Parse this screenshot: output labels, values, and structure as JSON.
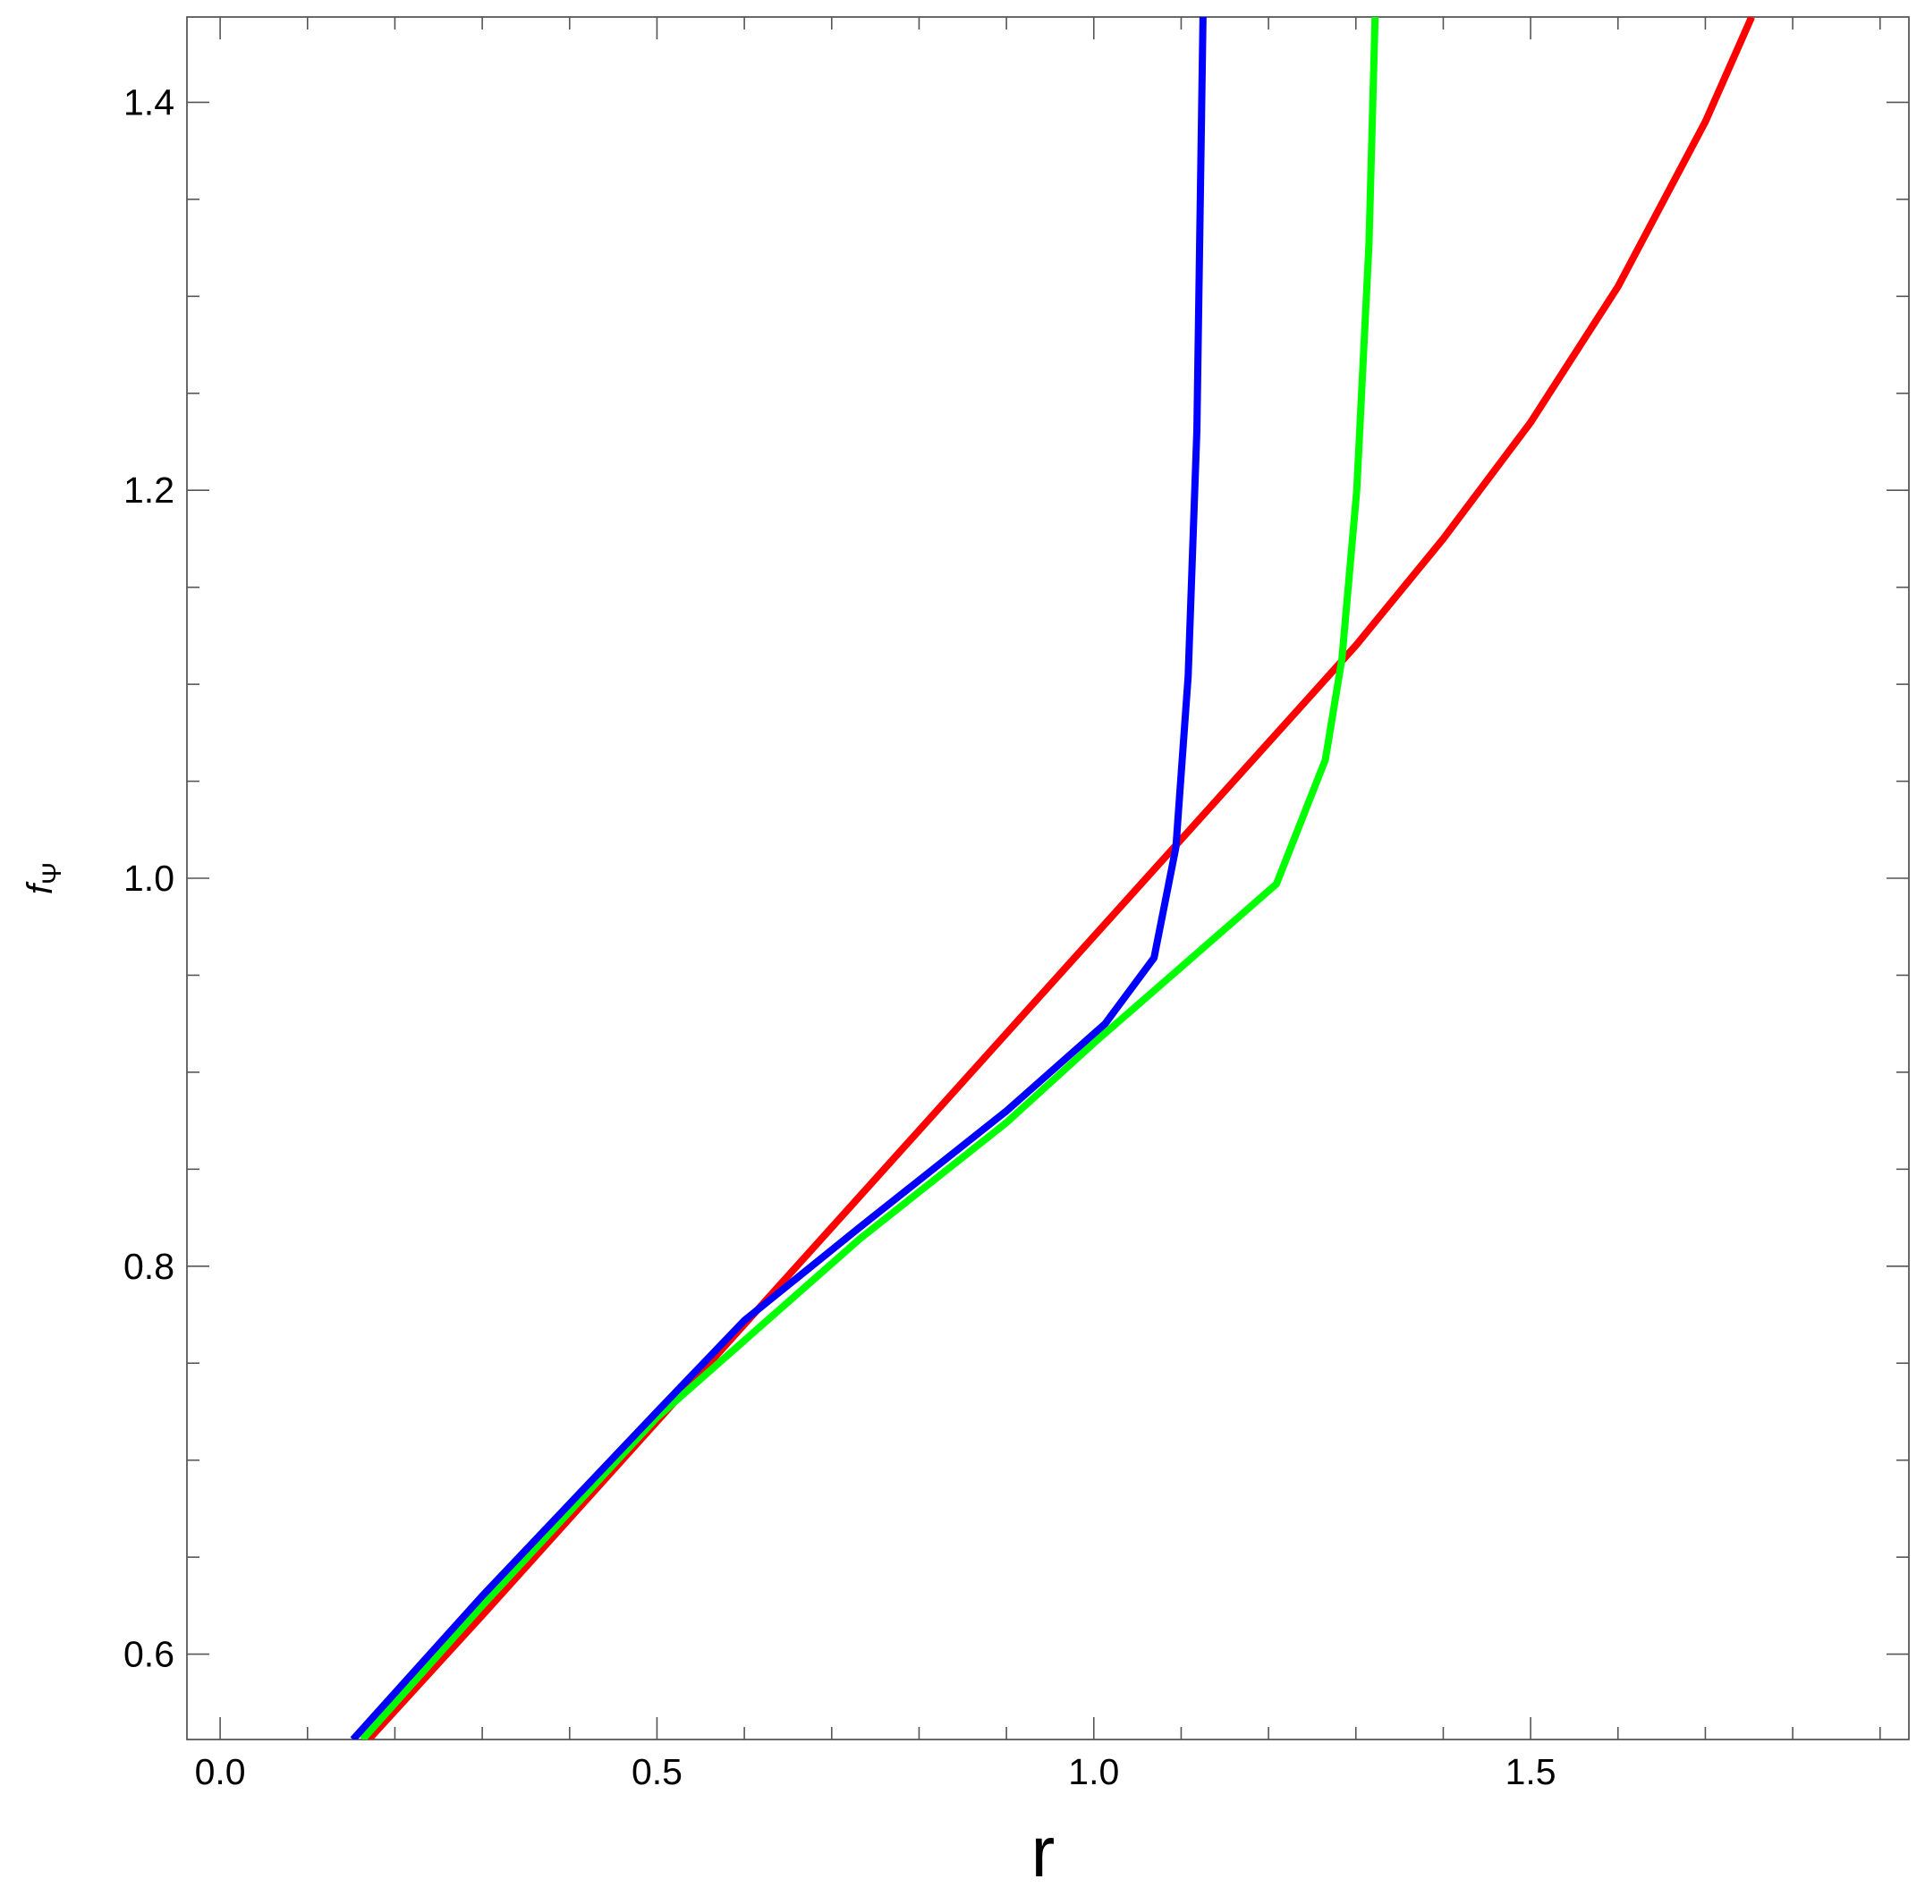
{
  "chart_data": {
    "type": "line",
    "xlabel": "r",
    "ylabel": "f",
    "ylabel_subscript": "Ψ",
    "series": [
      {
        "color": "#ff0000",
        "x": [
          0.17,
          0.3,
          0.5,
          0.7,
          0.9,
          1.1,
          1.3,
          1.4,
          1.5,
          1.6,
          1.7,
          1.753
        ],
        "values": [
          0.556,
          0.62,
          0.72,
          0.82,
          0.92,
          1.02,
          1.12,
          1.175,
          1.235,
          1.305,
          1.39,
          1.444
        ]
      },
      {
        "color": "#00ff00",
        "x": [
          0.163,
          0.3,
          0.5,
          0.732,
          0.9,
          1.0,
          1.097,
          1.209,
          1.265,
          1.284,
          1.301,
          1.315,
          1.322
        ],
        "values": [
          0.556,
          0.625,
          0.722,
          0.814,
          0.874,
          0.915,
          0.953,
          0.997,
          1.061,
          1.113,
          1.2,
          1.327,
          1.444
        ]
      },
      {
        "color": "#0000ff",
        "x": [
          0.152,
          0.3,
          0.5,
          0.6,
          0.732,
          0.9,
          1.013,
          1.069,
          1.094,
          1.108,
          1.118,
          1.125
        ],
        "values": [
          0.556,
          0.63,
          0.725,
          0.772,
          0.82,
          0.88,
          0.925,
          0.959,
          1.016,
          1.104,
          1.231,
          1.444
        ]
      }
    ],
    "xlim": [
      -0.038,
      1.933
    ],
    "ylim": [
      0.556,
      1.444
    ],
    "xticks": [
      {
        "value": 0,
        "label": "0.0"
      },
      0.5,
      {
        "value": 1,
        "label": "1.0"
      },
      1.5
    ],
    "yticks": [
      0.6,
      0.8,
      {
        "value": 1,
        "label": "1.0"
      },
      1.2,
      1.4
    ],
    "xticks_minor": [
      0.1,
      0.2,
      0.3,
      0.4,
      0.6,
      0.7,
      0.8,
      0.9,
      1.1,
      1.2,
      1.3,
      1.4,
      1.6,
      1.7,
      1.8,
      1.9
    ],
    "yticks_minor": [
      0.65,
      0.7,
      0.75,
      0.85,
      0.9,
      0.95,
      1.05,
      1.1,
      1.15,
      1.25,
      1.3,
      1.35
    ],
    "grid": false
  }
}
